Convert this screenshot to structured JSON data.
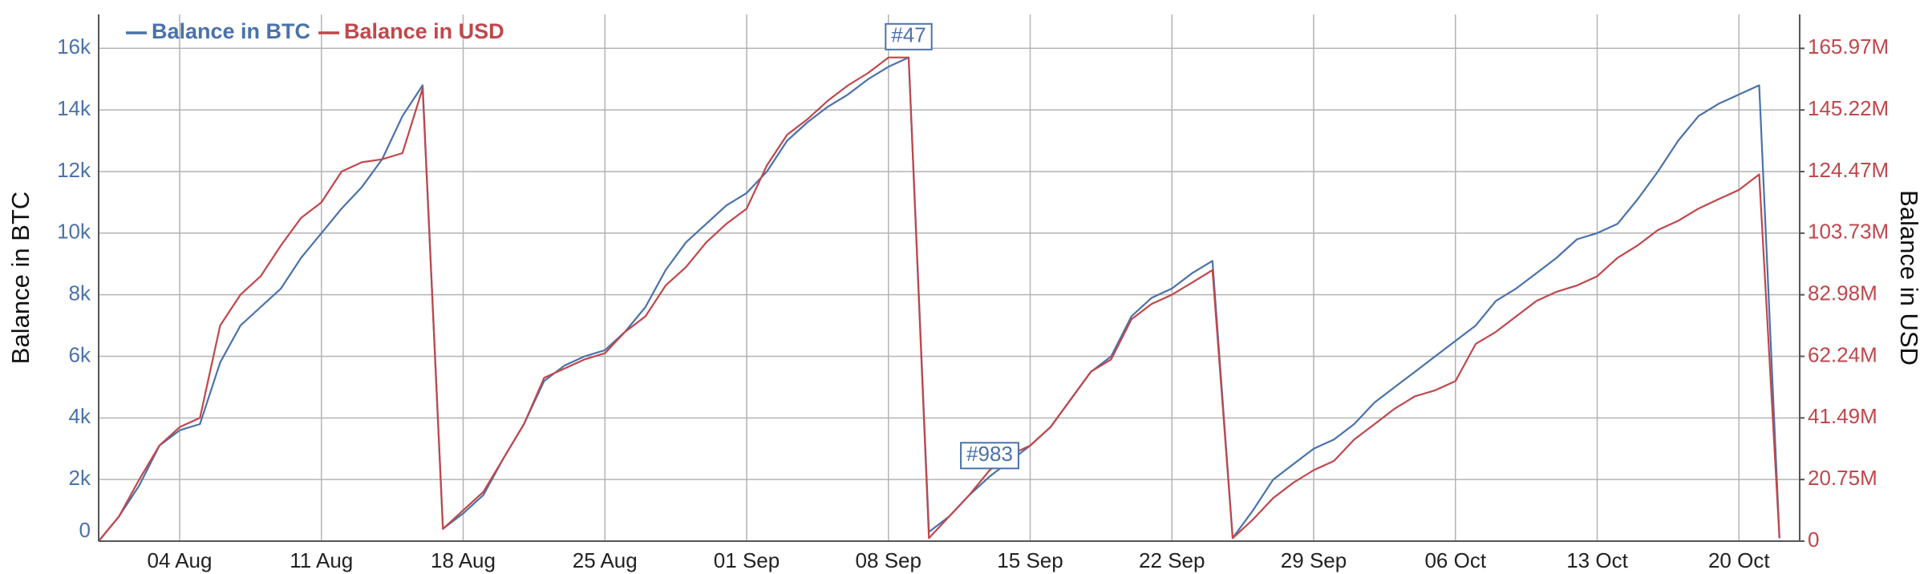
{
  "chart_data": {
    "type": "line",
    "x_label": "",
    "y_label": "Balance in BTC",
    "y2_label": "Balance in USD",
    "x": [
      "31 Jul",
      "01 Aug",
      "02 Aug",
      "03 Aug",
      "04 Aug",
      "05 Aug",
      "06 Aug",
      "07 Aug",
      "08 Aug",
      "09 Aug",
      "10 Aug",
      "11 Aug",
      "12 Aug",
      "13 Aug",
      "14 Aug",
      "15 Aug",
      "16 Aug",
      "17 Aug",
      "18 Aug",
      "19 Aug",
      "20 Aug",
      "21 Aug",
      "22 Aug",
      "23 Aug",
      "24 Aug",
      "25 Aug",
      "26 Aug",
      "27 Aug",
      "28 Aug",
      "29 Aug",
      "30 Aug",
      "31 Aug",
      "01 Sep",
      "02 Sep",
      "03 Sep",
      "04 Sep",
      "05 Sep",
      "06 Sep",
      "07 Sep",
      "08 Sep",
      "09 Sep",
      "10 Sep",
      "11 Sep",
      "12 Sep",
      "13 Sep",
      "14 Sep",
      "15 Sep",
      "16 Sep",
      "17 Sep",
      "18 Sep",
      "19 Sep",
      "20 Sep",
      "21 Sep",
      "22 Sep",
      "23 Sep",
      "24 Sep",
      "25 Sep",
      "26 Sep",
      "27 Sep",
      "28 Sep",
      "29 Sep",
      "30 Sep",
      "01 Oct",
      "02 Oct",
      "03 Oct",
      "04 Oct",
      "05 Oct",
      "06 Oct",
      "07 Oct",
      "08 Oct",
      "09 Oct",
      "10 Oct",
      "11 Oct",
      "12 Oct",
      "13 Oct",
      "14 Oct",
      "15 Oct",
      "16 Oct",
      "17 Oct",
      "18 Oct",
      "19 Oct",
      "20 Oct",
      "21 Oct",
      "22 Oct"
    ],
    "series": [
      {
        "name": "Balance in BTC",
        "color": "#4a72aa",
        "axis": "y",
        "values": [
          0,
          800,
          1800,
          3100,
          3600,
          3800,
          5800,
          7000,
          7600,
          8200,
          9200,
          10000,
          10800,
          11500,
          12400,
          13800,
          14800,
          400,
          900,
          1500,
          2700,
          3800,
          5200,
          5700,
          6000,
          6200,
          6800,
          7600,
          8800,
          9700,
          10300,
          10900,
          11300,
          12000,
          13000,
          13600,
          14100,
          14500,
          15000,
          15400,
          15700,
          300,
          800,
          1500,
          2100,
          2600,
          3100,
          3700,
          4600,
          5500,
          6000,
          7300,
          7900,
          8200,
          8700,
          9100,
          100,
          1000,
          2000,
          2500,
          3000,
          3300,
          3800,
          4500,
          5000,
          5500,
          6000,
          6500,
          7000,
          7800,
          8200,
          8700,
          9200,
          9800,
          10000,
          10300,
          11100,
          12000,
          13000,
          13800,
          14200,
          14500,
          14800,
          100
        ]
      },
      {
        "name": "Balance in USD",
        "color": "#c0474c",
        "axis": "y2",
        "values": [
          0,
          8300000,
          20700000,
          32200000,
          38400000,
          41500000,
          72600000,
          83000000,
          89200000,
          99600000,
          108900000,
          114100000,
          124500000,
          127600000,
          128600000,
          130700000,
          152500000,
          4100000,
          10400000,
          16600000,
          28000000,
          39400000,
          55000000,
          58100000,
          61200000,
          63300000,
          70500000,
          75700000,
          86100000,
          92300000,
          100600000,
          106900000,
          112000000,
          126600000,
          136900000,
          142100000,
          148300000,
          153500000,
          157700000,
          162900000,
          162900000,
          1000000,
          8300000,
          15600000,
          23900000,
          29000000,
          32200000,
          38400000,
          47700000,
          57100000,
          61200000,
          74700000,
          79900000,
          83000000,
          87100000,
          91300000,
          1000000,
          7300000,
          14500000,
          19700000,
          23900000,
          27000000,
          34200000,
          39400000,
          44600000,
          48800000,
          50800000,
          53900000,
          66400000,
          70500000,
          75700000,
          80900000,
          84000000,
          86100000,
          89200000,
          95400000,
          99600000,
          104800000,
          107900000,
          112000000,
          115200000,
          118300000,
          123500000,
          1000000
        ]
      }
    ],
    "xlim": [
      "31 Jul",
      "23 Oct"
    ],
    "xticks": [
      "04 Aug",
      "11 Aug",
      "18 Aug",
      "25 Aug",
      "01 Sep",
      "08 Sep",
      "15 Sep",
      "22 Sep",
      "29 Sep",
      "06 Oct",
      "13 Oct",
      "20 Oct"
    ],
    "ylim": [
      0,
      17100
    ],
    "yticks": [
      0,
      {
        "value": 2000,
        "label": "2k"
      },
      {
        "value": 4000,
        "label": "4k"
      },
      {
        "value": 6000,
        "label": "6k"
      },
      {
        "value": 8000,
        "label": "8k"
      },
      {
        "value": 10000,
        "label": "10k"
      },
      {
        "value": 12000,
        "label": "12k"
      },
      {
        "value": 14000,
        "label": "14k"
      },
      {
        "value": 16000,
        "label": "16k"
      }
    ],
    "y2lim": [
      0,
      177400000
    ],
    "y2ticks": [
      0,
      {
        "value": 20750000,
        "label": "20.75M"
      },
      {
        "value": 41490000,
        "label": "41.49M"
      },
      {
        "value": 62240000,
        "label": "62.24M"
      },
      {
        "value": 82980000,
        "label": "82.98M"
      },
      {
        "value": 103730000,
        "label": "103.73M"
      },
      {
        "value": 124470000,
        "label": "124.47M"
      },
      {
        "value": 145220000,
        "label": "145.22M"
      },
      {
        "value": 165970000,
        "label": "165.97M"
      }
    ],
    "grid": true,
    "legend": "top-left",
    "annotations": [
      {
        "text": "#47",
        "x": "09 Sep"
      },
      {
        "text": "#983",
        "x": "13 Sep"
      }
    ]
  }
}
